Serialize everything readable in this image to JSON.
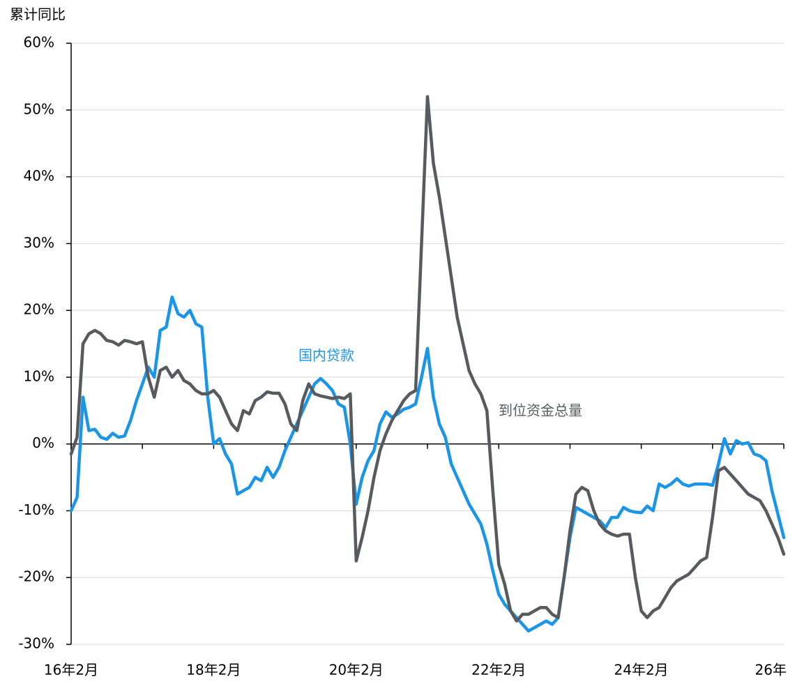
{
  "chart_data": {
    "type": "line",
    "y_label": "累计同比",
    "categories": [
      "16年2月",
      null,
      null,
      null,
      null,
      null,
      null,
      null,
      null,
      null,
      null,
      null,
      null,
      null,
      null,
      null,
      null,
      null,
      null,
      null,
      null,
      null,
      null,
      null,
      "18年2月",
      null,
      null,
      null,
      null,
      null,
      null,
      null,
      null,
      null,
      null,
      null,
      null,
      null,
      null,
      null,
      null,
      null,
      null,
      null,
      null,
      null,
      null,
      null,
      "20年2月",
      null,
      null,
      null,
      null,
      null,
      null,
      null,
      null,
      null,
      null,
      null,
      null,
      null,
      null,
      null,
      null,
      null,
      null,
      null,
      null,
      null,
      null,
      null,
      "22年2月",
      null,
      null,
      null,
      null,
      null,
      null,
      null,
      null,
      null,
      null,
      null,
      null,
      null,
      null,
      null,
      null,
      null,
      null,
      null,
      null,
      null,
      null,
      null,
      "24年2月",
      null,
      null,
      null,
      null,
      null,
      null,
      null,
      null,
      null,
      null,
      null,
      null,
      null,
      null,
      null,
      null,
      null,
      null,
      null,
      null,
      null,
      null,
      null,
      "26年"
    ],
    "series": [
      {
        "name": "国内贷款",
        "color": "#1a95e8",
        "values": [
          -10,
          -8,
          7,
          2,
          2.2,
          1,
          0.7,
          1.6,
          1,
          1.2,
          3.5,
          6.5,
          9,
          11.5,
          10,
          17,
          17.5,
          22,
          19.5,
          19,
          20,
          18,
          17.5,
          7,
          0,
          0.8,
          -1.5,
          -3,
          -7.5,
          -7,
          -6.5,
          -5,
          -5.5,
          -3.5,
          -5,
          -3.5,
          -1,
          1,
          3,
          5,
          7,
          9,
          9.8,
          9,
          8,
          6,
          5.5,
          0,
          -9,
          -5,
          -2.5,
          -1,
          3,
          4.8,
          4,
          4.5,
          5.2,
          5.5,
          6,
          10,
          14.3,
          7,
          3,
          1,
          -3,
          -5,
          -7,
          -9,
          -10.5,
          -12,
          -15,
          -19,
          -22.5,
          -24,
          -25,
          -26,
          -27,
          -28,
          -27.5,
          -27,
          -26.5,
          -27,
          -26,
          -20,
          -14,
          -9.5,
          -10,
          -10.5,
          -11,
          -11.5,
          -12.5,
          -11,
          -11,
          -9.5,
          -10,
          -10.2,
          -10.3,
          -9.3,
          -10,
          -6,
          -6.5,
          -6,
          -5.2,
          -6,
          -6.3,
          -6,
          -6,
          -6,
          -6.2,
          -3,
          0.8,
          -1.5,
          0.5,
          0,
          0.2,
          -1.5,
          -1.8,
          -2.5,
          -7,
          -10.5,
          -14
        ]
      },
      {
        "name": "到位资金总量",
        "color": "#575b5f",
        "values": [
          -1.5,
          1,
          15,
          16.5,
          17,
          16.5,
          15.5,
          15.3,
          14.8,
          15.5,
          15.3,
          15,
          15.3,
          10,
          7,
          11,
          11.5,
          10,
          11,
          9.5,
          9,
          8,
          7.5,
          7.5,
          8,
          7,
          5,
          3,
          2,
          5,
          4.5,
          6.5,
          7,
          7.8,
          7.6,
          7.6,
          6,
          3,
          2,
          6.5,
          9,
          7.5,
          7.2,
          7,
          6.8,
          7,
          6.8,
          7.5,
          -17.5,
          -14,
          -10,
          -5,
          -1,
          1.5,
          3.5,
          5,
          6.5,
          7.5,
          8,
          30,
          52,
          42,
          37,
          31,
          25,
          19,
          15,
          11,
          9,
          7.5,
          5,
          -7,
          -18,
          -21,
          -25,
          -26.5,
          -25.5,
          -25.5,
          -25,
          -24.5,
          -24.5,
          -25.5,
          -26,
          -20,
          -13,
          -7.5,
          -6.5,
          -7,
          -10,
          -12,
          -13,
          -13.5,
          -13.8,
          -13.5,
          -13.5,
          -20,
          -25,
          -26,
          -25,
          -24.5,
          -23,
          -21.5,
          -20.5,
          -20,
          -19.5,
          -18.5,
          -17.5,
          -17,
          -11,
          -4,
          -3.5,
          -4.5,
          -5.5,
          -6.5,
          -7.5,
          -8,
          -8.5,
          -10,
          -12,
          -14,
          -16.5
        ]
      }
    ],
    "ylim": [
      -30,
      60
    ],
    "yticks": [
      {
        "value": -30,
        "label": "-30%"
      },
      {
        "value": -20,
        "label": "-20%"
      },
      {
        "value": -10,
        "label": "-10%"
      },
      {
        "value": 0,
        "label": "0%"
      },
      {
        "value": 10,
        "label": "10%"
      },
      {
        "value": 20,
        "label": "20%"
      },
      {
        "value": 30,
        "label": "30%"
      },
      {
        "value": 40,
        "label": "40%"
      },
      {
        "value": 50,
        "label": "50%"
      },
      {
        "value": 60,
        "label": "60%"
      }
    ],
    "grid": true
  }
}
